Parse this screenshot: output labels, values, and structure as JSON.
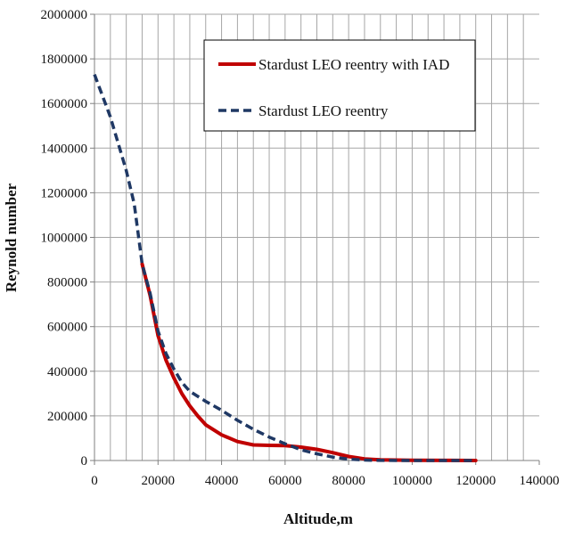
{
  "chart_data": {
    "type": "line",
    "title": "",
    "xlabel": "Altitude,m",
    "ylabel": "Reynold number",
    "xlim": [
      0,
      140000
    ],
    "ylim": [
      0,
      2000000
    ],
    "xticks": [
      0,
      20000,
      40000,
      60000,
      80000,
      100000,
      120000,
      140000
    ],
    "yticks": [
      0,
      200000,
      400000,
      600000,
      800000,
      1000000,
      1200000,
      1400000,
      1600000,
      1800000,
      2000000
    ],
    "x_minor_step": 5000,
    "grid": true,
    "legend_position": "top-right",
    "series": [
      {
        "name": "Stardust LEO reentry with IAD",
        "color": "#C00000",
        "style": "solid",
        "points": [
          [
            15000,
            880000
          ],
          [
            17500,
            740000
          ],
          [
            20000,
            560000
          ],
          [
            22500,
            450000
          ],
          [
            25000,
            370000
          ],
          [
            27500,
            300000
          ],
          [
            30000,
            245000
          ],
          [
            32500,
            200000
          ],
          [
            35000,
            160000
          ],
          [
            40000,
            115000
          ],
          [
            45000,
            85000
          ],
          [
            50000,
            70000
          ],
          [
            55000,
            68000
          ],
          [
            60000,
            67000
          ],
          [
            65000,
            60000
          ],
          [
            70000,
            50000
          ],
          [
            75000,
            35000
          ],
          [
            80000,
            18000
          ],
          [
            85000,
            7000
          ],
          [
            90000,
            3000
          ],
          [
            100000,
            1000
          ],
          [
            120000,
            0
          ]
        ]
      },
      {
        "name": "Stardust LEO reentry",
        "color": "#1F3864",
        "style": "dashed",
        "points": [
          [
            0,
            1730000
          ],
          [
            5000,
            1540000
          ],
          [
            10000,
            1300000
          ],
          [
            12500,
            1150000
          ],
          [
            15000,
            880000
          ],
          [
            17500,
            750000
          ],
          [
            20000,
            580000
          ],
          [
            22500,
            480000
          ],
          [
            25000,
            410000
          ],
          [
            27500,
            350000
          ],
          [
            30000,
            310000
          ],
          [
            35000,
            265000
          ],
          [
            40000,
            225000
          ],
          [
            45000,
            180000
          ],
          [
            50000,
            140000
          ],
          [
            55000,
            105000
          ],
          [
            60000,
            75000
          ],
          [
            65000,
            48000
          ],
          [
            70000,
            30000
          ],
          [
            75000,
            15000
          ],
          [
            80000,
            6000
          ],
          [
            85000,
            2000
          ],
          [
            90000,
            500
          ],
          [
            100000,
            0
          ],
          [
            120000,
            0
          ]
        ]
      }
    ]
  }
}
